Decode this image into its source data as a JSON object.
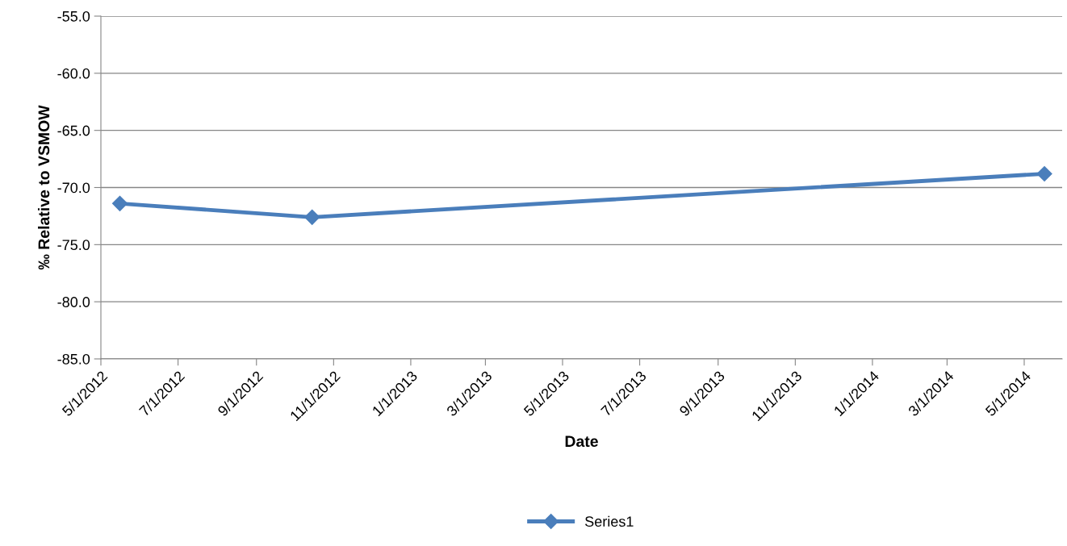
{
  "chart_data": {
    "type": "line",
    "xlabel": "Date",
    "ylabel": "‰ Relative to VSMOW",
    "x": [
      "2012-05-16",
      "2012-10-15",
      "2014-05-17"
    ],
    "series": [
      {
        "name": "Series1",
        "color": "#4a7ebb",
        "values": [
          -71.4,
          -72.6,
          -68.8
        ]
      }
    ],
    "xlim": [
      "2012-05-01",
      "2014-05-31"
    ],
    "xticks": [
      {
        "value": "2012-05-01",
        "label": "5/1/2012"
      },
      {
        "value": "2012-07-01",
        "label": "7/1/2012"
      },
      {
        "value": "2012-09-01",
        "label": "9/1/2012"
      },
      {
        "value": "2012-11-01",
        "label": "11/1/2012"
      },
      {
        "value": "2013-01-01",
        "label": "1/1/2013"
      },
      {
        "value": "2013-03-01",
        "label": "3/1/2013"
      },
      {
        "value": "2013-05-01",
        "label": "5/1/2013"
      },
      {
        "value": "2013-07-01",
        "label": "7/1/2013"
      },
      {
        "value": "2013-09-01",
        "label": "9/1/2013"
      },
      {
        "value": "2013-11-01",
        "label": "11/1/2013"
      },
      {
        "value": "2014-01-01",
        "label": "1/1/2014"
      },
      {
        "value": "2014-03-01",
        "label": "3/1/2014"
      },
      {
        "value": "2014-05-01",
        "label": "5/1/2014"
      }
    ],
    "ylim": [
      -85,
      -55
    ],
    "yticks": [
      {
        "value": -85,
        "label": "-85.0"
      },
      {
        "value": -80,
        "label": "-80.0"
      },
      {
        "value": -75,
        "label": "-75.0"
      },
      {
        "value": -70,
        "label": "-70.0"
      },
      {
        "value": -65,
        "label": "-65.0"
      },
      {
        "value": -60,
        "label": "-60.0"
      },
      {
        "value": -55,
        "label": "-55.0"
      }
    ],
    "grid": "y",
    "legend": "bottom",
    "marker": "diamond",
    "line_style": "solid"
  }
}
